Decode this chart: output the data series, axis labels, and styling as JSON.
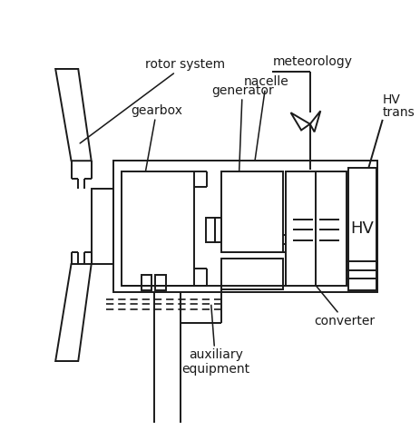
{
  "background_color": "#ffffff",
  "line_color": "#1a1a1a",
  "lw": 1.4,
  "font_size": 10,
  "labels": {
    "rotor_system": "rotor system",
    "gearbox": "gearbox",
    "generator": "generator",
    "nacelle": "nacelle",
    "meteorology": "meteorology",
    "HV_line1": "HV",
    "HV_line2": "trans",
    "converter": "converter",
    "auxiliary": "auxiliary\nequipment",
    "HV_box": "HV"
  }
}
